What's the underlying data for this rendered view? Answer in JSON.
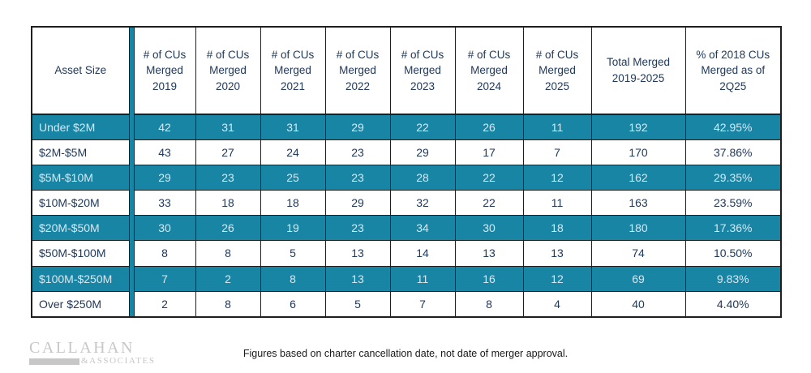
{
  "table": {
    "header": {
      "asset_size": "Asset Size",
      "year_columns": [
        "# of CUs\nMerged\n2019",
        "# of CUs\nMerged\n2020",
        "# of CUs\nMerged\n2021",
        "# of CUs\nMerged\n2022",
        "# of CUs\nMerged\n2023",
        "# of CUs\nMerged\n2024",
        "# of CUs\nMerged\n2025"
      ],
      "total_column": "Total Merged\n2019-2025",
      "percent_column": "% of 2018 CUs\nMerged as of\n2Q25"
    },
    "rows": [
      {
        "asset_size": "Under $2M",
        "merged_by_year": [
          42,
          31,
          31,
          29,
          22,
          26,
          11
        ],
        "total_merged": 192,
        "pct_of_2018": "42.95%",
        "highlighted": true
      },
      {
        "asset_size": "$2M-$5M",
        "merged_by_year": [
          43,
          27,
          24,
          23,
          29,
          17,
          7
        ],
        "total_merged": 170,
        "pct_of_2018": "37.86%",
        "highlighted": false
      },
      {
        "asset_size": "$5M-$10M",
        "merged_by_year": [
          29,
          23,
          25,
          23,
          28,
          22,
          12
        ],
        "total_merged": 162,
        "pct_of_2018": "29.35%",
        "highlighted": true
      },
      {
        "asset_size": "$10M-$20M",
        "merged_by_year": [
          33,
          18,
          18,
          29,
          32,
          22,
          11
        ],
        "total_merged": 163,
        "pct_of_2018": "23.59%",
        "highlighted": false
      },
      {
        "asset_size": "$20M-$50M",
        "merged_by_year": [
          30,
          26,
          19,
          23,
          34,
          30,
          18
        ],
        "total_merged": 180,
        "pct_of_2018": "17.36%",
        "highlighted": true
      },
      {
        "asset_size": "$50M-$100M",
        "merged_by_year": [
          8,
          8,
          5,
          13,
          14,
          13,
          13
        ],
        "total_merged": 74,
        "pct_of_2018": "10.50%",
        "highlighted": false
      },
      {
        "asset_size": "$100M-$250M",
        "merged_by_year": [
          7,
          2,
          8,
          13,
          11,
          16,
          12
        ],
        "total_merged": 69,
        "pct_of_2018": "9.83%",
        "highlighted": true
      },
      {
        "asset_size": "Over $250M",
        "merged_by_year": [
          2,
          8,
          6,
          5,
          7,
          8,
          4
        ],
        "total_merged": 40,
        "pct_of_2018": "4.40%",
        "highlighted": false
      }
    ]
  },
  "footer": {
    "note": "Figures based on charter cancellation date, not date of merger approval.",
    "logo": {
      "line1": "CALLAHAN",
      "line2": "&ASSOCIATES"
    }
  },
  "colors": {
    "accent_teal": "#1985a5",
    "text_navy": "#203a5c",
    "highlight_text": "#d9e6ee",
    "border": "#1f1f1f",
    "logo_gray": "#c7c7c7"
  }
}
